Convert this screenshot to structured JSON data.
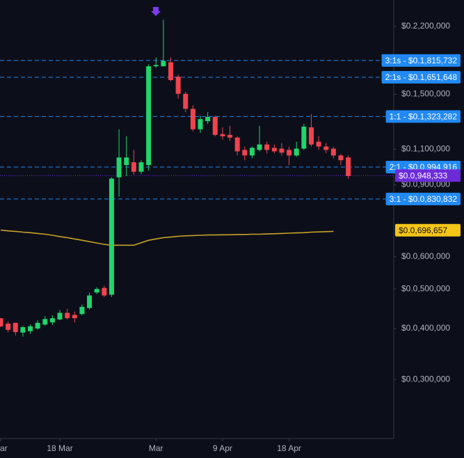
{
  "chart_data": {
    "type": "candlestick",
    "log_scale": true,
    "ylim": [
      0.0215,
      0.2554
    ],
    "yticks": [
      {
        "value": 0.22,
        "label": "$0.2,200,000"
      },
      {
        "value": 0.15,
        "label": "$0.1,500,000"
      },
      {
        "value": 0.11,
        "label": "$0.1,100,000"
      },
      {
        "value": 0.09,
        "label": "$0.0,900,000"
      },
      {
        "value": 0.06,
        "label": "$0.0,600,000"
      },
      {
        "value": 0.05,
        "label": "$0.0,500,000"
      },
      {
        "value": 0.04,
        "label": "$0.0,400,000"
      },
      {
        "value": 0.03,
        "label": "$0.0,300,000"
      }
    ],
    "xticks": [
      {
        "value": 0,
        "label": "ar"
      },
      {
        "value": 8,
        "label": "18 Mar"
      },
      {
        "value": 21,
        "label": "Mar"
      },
      {
        "value": 30,
        "label": "9 Apr"
      },
      {
        "value": 39,
        "label": "18 Apr"
      }
    ],
    "up_color": "#22d46b",
    "down_color": "#f0434f",
    "candles": {
      "open": [
        0.0424,
        0.0411,
        0.0413,
        0.0391,
        0.0394,
        0.04,
        0.0409,
        0.0414,
        0.0421,
        0.0437,
        0.0432,
        0.0434,
        0.0449,
        0.049,
        0.0503,
        0.0484,
        0.0939,
        0.1006,
        0.1022,
        0.0969,
        0.1006,
        0.1757,
        0.1757,
        0.1797,
        0.1657,
        0.1504,
        0.1382,
        0.1231,
        0.1289,
        0.132,
        0.1198,
        0.1193,
        0.1175,
        0.1096,
        0.1062,
        0.1096,
        0.113,
        0.1109,
        0.1104,
        0.1096,
        0.1062,
        0.1104,
        0.1245,
        0.1148,
        0.1117,
        0.1104,
        0.1062,
        0.105
      ],
      "high": [
        0.0424,
        0.0416,
        0.0413,
        0.0406,
        0.0409,
        0.0419,
        0.0429,
        0.0431,
        0.0444,
        0.0447,
        0.044,
        0.0458,
        0.049,
        0.0505,
        0.0509,
        0.0939,
        0.1231,
        0.1184,
        0.1096,
        0.1034,
        0.1777,
        0.1847,
        0.2284,
        0.1847,
        0.1677,
        0.1522,
        0.1409,
        0.133,
        0.1356,
        0.133,
        0.1245,
        0.1255,
        0.1184,
        0.1117,
        0.1117,
        0.1255,
        0.1148,
        0.113,
        0.1139,
        0.1117,
        0.1148,
        0.1269,
        0.1341,
        0.1184,
        0.1139,
        0.1117,
        0.1071,
        0.1062
      ],
      "low": [
        0.0403,
        0.0392,
        0.0385,
        0.0382,
        0.0388,
        0.0397,
        0.0406,
        0.0408,
        0.0419,
        0.0421,
        0.0414,
        0.0431,
        0.0445,
        0.0486,
        0.0478,
        0.0478,
        0.0842,
        0.0946,
        0.0953,
        0.0957,
        0.0976,
        0.1743,
        0.1757,
        0.1613,
        0.1464,
        0.1356,
        0.1217,
        0.1207,
        0.1269,
        0.1184,
        0.1162,
        0.1153,
        0.1062,
        0.1034,
        0.1046,
        0.1087,
        0.1075,
        0.1075,
        0.1062,
        0.1006,
        0.1054,
        0.1096,
        0.1117,
        0.1096,
        0.1075,
        0.1046,
        0.1006,
        0.0931
      ],
      "close": [
        0.0405,
        0.0397,
        0.0392,
        0.0403,
        0.0405,
        0.0413,
        0.0422,
        0.0424,
        0.0437,
        0.0424,
        0.0424,
        0.0452,
        0.0482,
        0.05,
        0.0482,
        0.0932,
        0.105,
        0.105,
        0.0969,
        0.1022,
        0.1757,
        0.177,
        0.1811,
        0.1626,
        0.1504,
        0.1382,
        0.1231,
        0.1304,
        0.132,
        0.1193,
        0.1184,
        0.1175,
        0.1087,
        0.1062,
        0.1109,
        0.113,
        0.1096,
        0.1087,
        0.1079,
        0.1062,
        0.1104,
        0.125,
        0.113,
        0.1117,
        0.1096,
        0.1062,
        0.1034,
        0.0946
      ]
    },
    "moving_average": {
      "color": "#c9a227",
      "label_color": "#f5c518",
      "value_label": "$0.0,696,657",
      "value": 0.0696657,
      "values": [
        0.0697,
        0.0694,
        0.0692,
        0.0689,
        0.0687,
        0.0684,
        0.0681,
        0.0677,
        0.0672,
        0.0668,
        0.0663,
        0.0658,
        0.0653,
        0.0648,
        0.0643,
        0.064,
        0.064,
        0.064,
        0.064,
        0.0649,
        0.0658,
        0.0663,
        0.0668,
        0.067,
        0.0673,
        0.0675,
        0.0676,
        0.0677,
        0.0678,
        0.0678,
        0.0679,
        0.0679,
        0.068,
        0.068,
        0.0681,
        0.0681,
        0.0682,
        0.0683,
        0.0684,
        0.0685,
        0.0686,
        0.0687,
        0.0689,
        0.069,
        0.0691,
        0.0692,
        null,
        null
      ]
    },
    "current_price": {
      "value": 0.0948333,
      "label": "$0.0,948,333",
      "color": "#6c2bd9"
    },
    "levels_color": "#2189f3",
    "levels": [
      {
        "value": 0.1815732,
        "label": "3:1s - $0.1,815,732"
      },
      {
        "value": 0.1651648,
        "label": "2:1s - $0.1,651,648"
      },
      {
        "value": 0.1323282,
        "label": "1:1 - $0.1,323,282"
      },
      {
        "value": 0.0994916,
        "label": "2:1 - $0.0,994,916"
      },
      {
        "value": 0.0830832,
        "label": "3:1 - $0.0,830,832"
      }
    ]
  }
}
